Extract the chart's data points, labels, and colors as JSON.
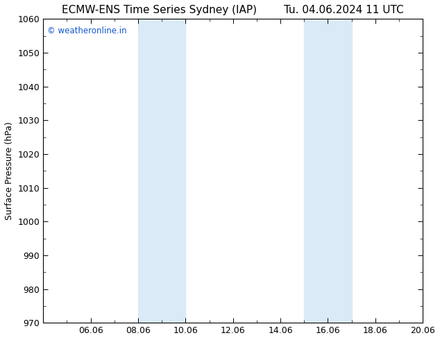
{
  "title_left": "ECMW-ENS Time Series Sydney (IAP)",
  "title_right": "Tu. 04.06.2024 11 UTC",
  "ylabel": "Surface Pressure (hPa)",
  "ylim": [
    970,
    1060
  ],
  "yticks": [
    970,
    980,
    990,
    1000,
    1010,
    1020,
    1030,
    1040,
    1050,
    1060
  ],
  "xlim_left": 0,
  "xlim_right": 16,
  "xtick_labels": [
    "06.06",
    "08.06",
    "10.06",
    "12.06",
    "14.06",
    "16.06",
    "18.06",
    "20.06"
  ],
  "xtick_positions": [
    2,
    4,
    6,
    8,
    10,
    12,
    14,
    16
  ],
  "shaded_bands": [
    {
      "xstart": 4,
      "xend": 6
    },
    {
      "xstart": 11,
      "xend": 13
    }
  ],
  "shade_color": "#daeaf7",
  "background_color": "#ffffff",
  "plot_bg_color": "#ffffff",
  "watermark_text": "© weatheronline.in",
  "watermark_color": "#1155cc",
  "title_fontsize": 11,
  "ylabel_fontsize": 9,
  "tick_fontsize": 9,
  "watermark_fontsize": 8.5
}
